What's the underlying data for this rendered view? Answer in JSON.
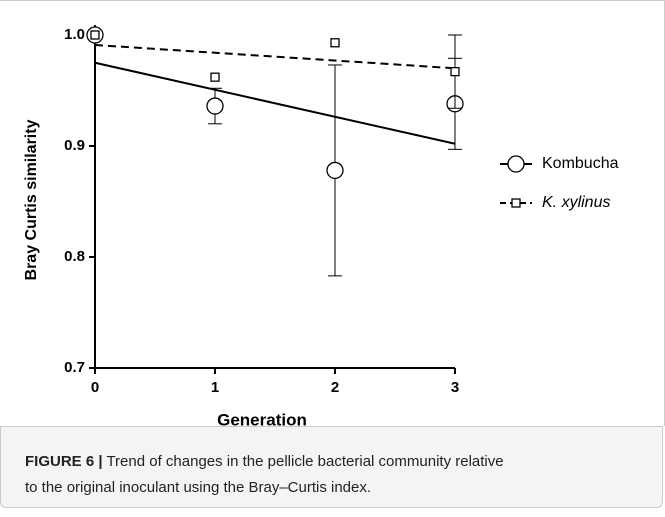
{
  "chart_data": {
    "type": "scatter",
    "x_label": "Generation",
    "y_label": "Bray Curtis similarity",
    "x": [
      0,
      1,
      2,
      3
    ],
    "xlim": [
      0,
      3
    ],
    "xticks": [
      0,
      1,
      2,
      3
    ],
    "ylim": [
      0.7,
      1.0
    ],
    "yticks": [
      0.7,
      0.8,
      0.9,
      {
        "value": 1.0,
        "label": "1.0"
      }
    ],
    "legend": "right",
    "series": [
      {
        "name": "Kombucha",
        "color": "#000000",
        "marker": "circle",
        "line": "solid",
        "values": [
          1.0,
          0.936,
          0.878,
          0.938
        ],
        "errors": [
          0,
          0.016,
          0.095,
          0.041
        ],
        "fit": [
          0.975,
          0.902
        ]
      },
      {
        "name": "K. xylinus",
        "color": "#000000",
        "marker": "square",
        "line": "dashed",
        "values": [
          1.0,
          0.962,
          0.993,
          0.967
        ],
        "errors": [
          0,
          0,
          0,
          0.033
        ],
        "fit": [
          0.991,
          0.97
        ]
      }
    ]
  },
  "caption": {
    "label": "FIGURE 6 |",
    "lines": [
      " Trend of changes in the pellicle bacterial community relative",
      "to the original inoculant using the Bray–Curtis index."
    ]
  }
}
